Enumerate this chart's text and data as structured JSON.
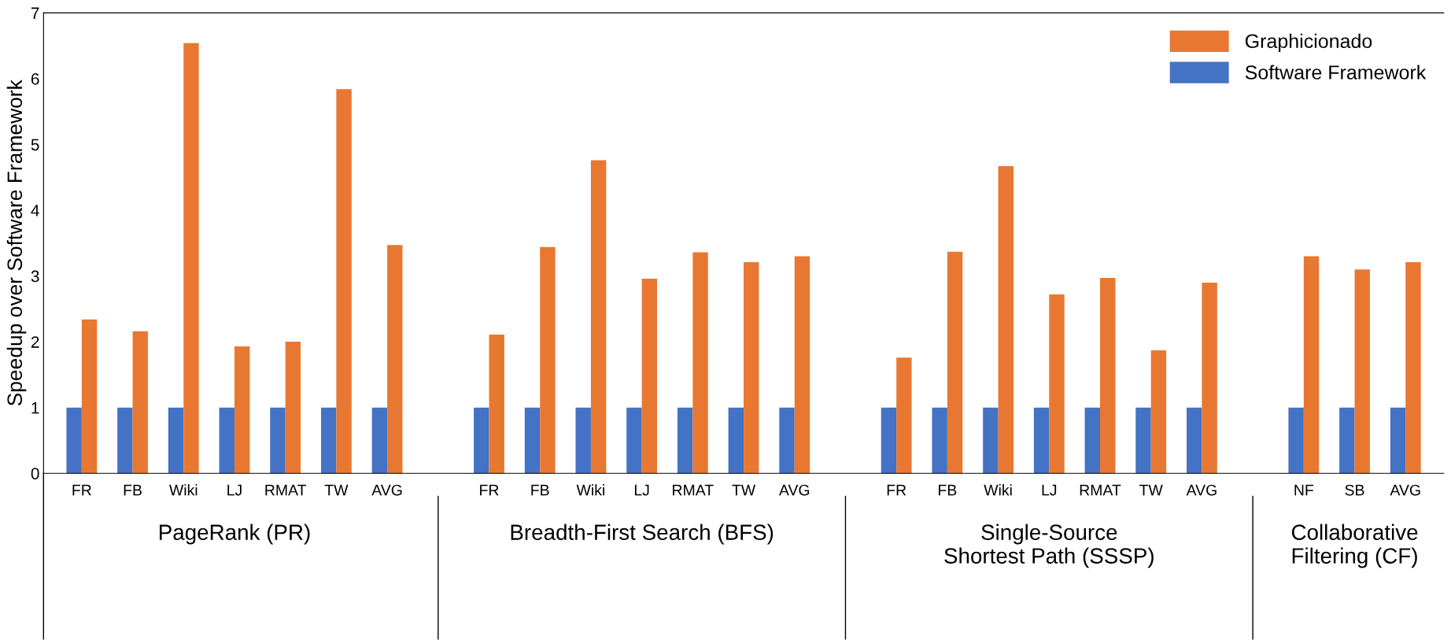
{
  "chart_data": {
    "type": "bar",
    "ylabel": "Speedup over Software Framework",
    "categories": [
      "FR",
      "FB",
      "Wiki",
      "LJ",
      "RMAT",
      "TW",
      "AVG",
      null,
      "FR",
      "FB",
      "Wiki",
      "LJ",
      "RMAT",
      "TW",
      "AVG",
      null,
      "FR",
      "FB",
      "Wiki",
      "LJ",
      "RMAT",
      "TW",
      "AVG",
      null,
      "NF",
      "SB",
      "AVG"
    ],
    "series": [
      {
        "name": "Software Framework",
        "color": "#4472c4",
        "values": [
          1,
          1,
          1,
          1,
          1,
          1,
          1,
          null,
          1,
          1,
          1,
          1,
          1,
          1,
          1,
          null,
          1,
          1,
          1,
          1,
          1,
          1,
          1,
          null,
          1,
          1,
          1
        ]
      },
      {
        "name": "Graphicionado",
        "color": "#e87831",
        "values": [
          2.34,
          2.16,
          6.54,
          1.93,
          2.0,
          5.84,
          3.47,
          null,
          2.11,
          3.44,
          4.76,
          2.96,
          3.36,
          3.21,
          3.3,
          null,
          1.76,
          3.37,
          4.67,
          2.72,
          2.97,
          1.87,
          2.9,
          null,
          3.3,
          3.1,
          3.21
        ]
      }
    ],
    "annotations": [
      "PageRank (PR)",
      "Breadth-First Search (BFS)",
      "Single-Source\nShortest Path (SSSP)",
      "Collaborative\nFiltering (CF)"
    ],
    "ylim": [
      0,
      7
    ],
    "yticks": [
      0,
      1,
      2,
      3,
      4,
      5,
      6,
      7
    ],
    "grid": false,
    "legend": "top right"
  }
}
